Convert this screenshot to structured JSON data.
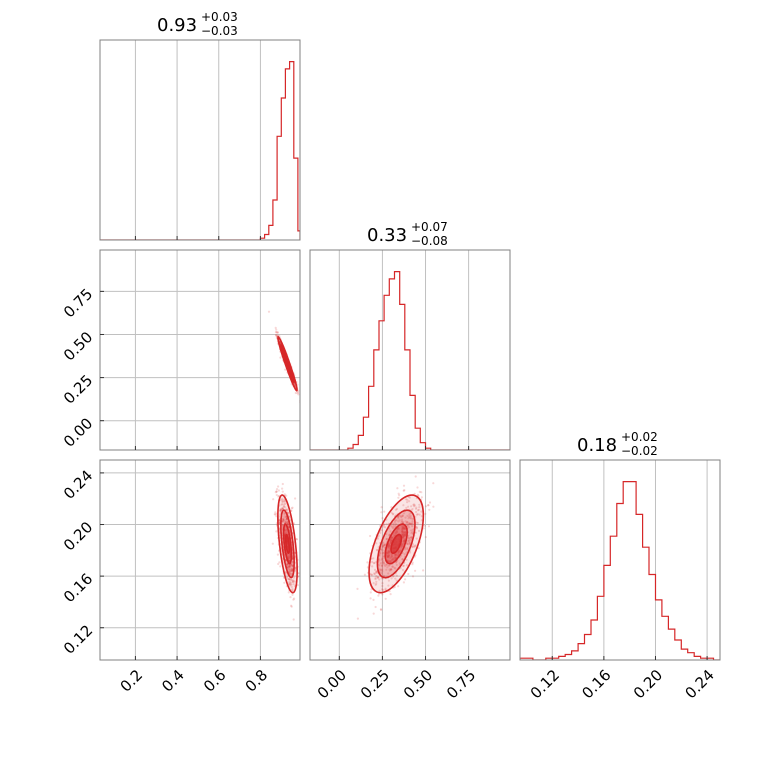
{
  "chart_data": {
    "type": "corner",
    "color": "#d62728",
    "parameters": [
      {
        "title": {
          "median": "0.93",
          "plus": "+0.03",
          "minus": "−0.03"
        },
        "range": [
          0.03,
          0.99
        ],
        "ticks": [
          {
            "value": 0.2,
            "label": "0.2"
          },
          {
            "value": 0.4,
            "label": "0.4"
          },
          {
            "value": 0.6,
            "label": "0.6"
          },
          {
            "value": 0.8,
            "label": "0.8"
          }
        ],
        "mean": 0.93,
        "sd": 0.022,
        "histogram": {
          "edges": [
            0.8,
            0.82,
            0.84,
            0.86,
            0.88,
            0.9,
            0.92,
            0.94,
            0.96,
            0.98,
            0.99
          ],
          "density": [
            0.01,
            0.03,
            0.08,
            0.22,
            0.57,
            0.78,
            0.94,
            0.98,
            0.45,
            0.05
          ]
        }
      },
      {
        "title": {
          "median": "0.33",
          "plus": "+0.07",
          "minus": "−0.08"
        },
        "range": [
          -0.17,
          0.99
        ],
        "ticks": [
          {
            "value": 0.0,
            "label": "0.00"
          },
          {
            "value": 0.25,
            "label": "0.25"
          },
          {
            "value": 0.5,
            "label": "0.50"
          },
          {
            "value": 0.75,
            "label": "0.75"
          }
        ],
        "mean": 0.33,
        "sd": 0.075,
        "histogram": {
          "edges": [
            0.05,
            0.08,
            0.11,
            0.14,
            0.17,
            0.2,
            0.23,
            0.26,
            0.29,
            0.32,
            0.35,
            0.38,
            0.41,
            0.44,
            0.47,
            0.5,
            0.53,
            0.56
          ],
          "density": [
            0.01,
            0.03,
            0.08,
            0.18,
            0.35,
            0.55,
            0.71,
            0.85,
            0.94,
            0.98,
            0.8,
            0.55,
            0.3,
            0.12,
            0.04,
            0.01,
            0.0
          ]
        }
      },
      {
        "title": {
          "median": "0.18",
          "plus": "+0.02",
          "minus": "−0.02"
        },
        "range": [
          0.095,
          0.25
        ],
        "ticks": [
          {
            "value": 0.12,
            "label": "0.12"
          },
          {
            "value": 0.16,
            "label": "0.16"
          },
          {
            "value": 0.2,
            "label": "0.20"
          },
          {
            "value": 0.24,
            "label": "0.24"
          }
        ],
        "mean": 0.185,
        "sd": 0.018,
        "histogram": {
          "edges": [
            0.095,
            0.105,
            0.115,
            0.125,
            0.13,
            0.135,
            0.14,
            0.145,
            0.15,
            0.155,
            0.16,
            0.165,
            0.17,
            0.175,
            0.18,
            0.185,
            0.19,
            0.195,
            0.2,
            0.205,
            0.21,
            0.215,
            0.22,
            0.225,
            0.23,
            0.235,
            0.24,
            0.245,
            0.25
          ],
          "density": [
            0.01,
            0.0,
            0.01,
            0.02,
            0.03,
            0.05,
            0.09,
            0.14,
            0.22,
            0.35,
            0.52,
            0.68,
            0.86,
            0.98,
            0.98,
            0.8,
            0.62,
            0.47,
            0.33,
            0.24,
            0.17,
            0.11,
            0.06,
            0.04,
            0.02,
            0.01,
            0.01,
            0.0
          ]
        }
      }
    ],
    "pairs": [
      {
        "row": 1,
        "col": 0,
        "correlation": -0.97
      },
      {
        "row": 2,
        "col": 0,
        "correlation": -0.55
      },
      {
        "row": 2,
        "col": 1,
        "correlation": 0.58
      }
    ],
    "contour_levels": [
      0.4,
      0.85,
      1.45,
      2.1
    ],
    "grid": true
  }
}
